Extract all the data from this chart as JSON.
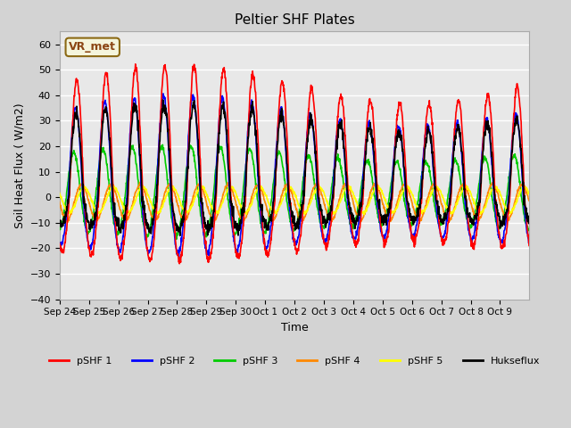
{
  "title": "Peltier SHF Plates",
  "xlabel": "Time",
  "ylabel": "Soil Heat Flux ( W/m2)",
  "ylim": [
    -40,
    65
  ],
  "yticks": [
    -40,
    -30,
    -20,
    -10,
    0,
    10,
    20,
    30,
    40,
    50,
    60
  ],
  "annotation_text": "VR_met",
  "x_tick_labels": [
    "Sep 24",
    "Sep 25",
    "Sep 26",
    "Sep 27",
    "Sep 28",
    "Sep 29",
    "Sep 30",
    "Oct 1",
    "Oct 2",
    "Oct 3",
    "Oct 4",
    "Oct 5",
    "Oct 6",
    "Oct 7",
    "Oct 8",
    "Oct 9"
  ],
  "series_colors": {
    "pSHF 1": "#FF0000",
    "pSHF 2": "#0000FF",
    "pSHF 3": "#00CC00",
    "pSHF 4": "#FF8800",
    "pSHF 5": "#FFFF00",
    "Hukseflux": "#000000"
  },
  "background_color": "#D3D3D3",
  "plot_bg_color": "#E8E8E8",
  "grid_color": "#FFFFFF",
  "num_days": 16,
  "dt_hours": 0.25
}
